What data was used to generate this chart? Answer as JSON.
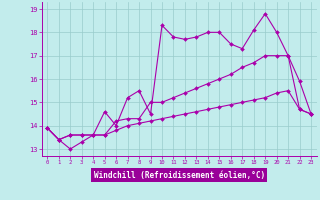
{
  "xlabel": "Windchill (Refroidissement éolien,°C)",
  "xlim": [
    -0.5,
    23.5
  ],
  "ylim": [
    12.7,
    19.3
  ],
  "yticks": [
    13,
    14,
    15,
    16,
    17,
    18,
    19
  ],
  "xticks": [
    0,
    1,
    2,
    3,
    4,
    5,
    6,
    7,
    8,
    9,
    10,
    11,
    12,
    13,
    14,
    15,
    16,
    17,
    18,
    19,
    20,
    21,
    22,
    23
  ],
  "background_color": "#c2ecec",
  "line_color": "#aa00aa",
  "grid_color": "#99cccc",
  "xlabel_bg": "#990099",
  "xlabel_fg": "#ffffff",
  "series": [
    [
      13.9,
      13.4,
      13.0,
      13.3,
      13.6,
      14.6,
      14.0,
      15.2,
      15.5,
      14.5,
      18.3,
      17.8,
      17.7,
      17.8,
      18.0,
      18.0,
      17.5,
      17.3,
      18.1,
      18.8,
      18.0,
      17.0,
      14.7,
      14.5
    ],
    [
      13.9,
      13.4,
      13.6,
      13.6,
      13.6,
      13.6,
      14.2,
      14.3,
      14.3,
      15.0,
      15.0,
      15.2,
      15.4,
      15.6,
      15.8,
      16.0,
      16.2,
      16.5,
      16.7,
      17.0,
      17.0,
      17.0,
      15.9,
      14.5
    ],
    [
      13.9,
      13.4,
      13.6,
      13.6,
      13.6,
      13.6,
      13.8,
      14.0,
      14.1,
      14.2,
      14.3,
      14.4,
      14.5,
      14.6,
      14.7,
      14.8,
      14.9,
      15.0,
      15.1,
      15.2,
      15.4,
      15.5,
      14.7,
      14.5
    ]
  ]
}
